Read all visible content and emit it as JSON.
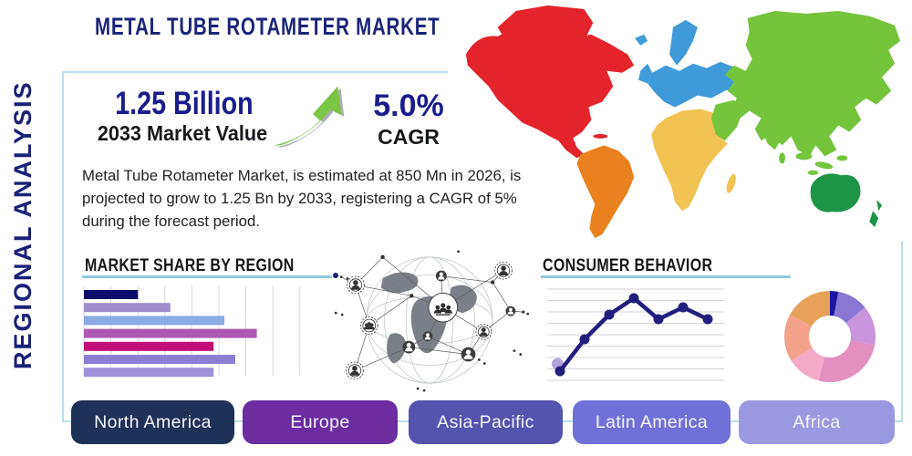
{
  "header": {
    "title": "METAL TUBE ROTAMETER MARKET"
  },
  "sidebar": {
    "label": "REGIONAL ANALYSIS"
  },
  "stats": {
    "market_value": "1.25 Billion",
    "market_value_caption": "2033 Market Value",
    "cagr_value": "5.0%",
    "cagr_caption": "CAGR",
    "growth_arrow_color": "#7cc444"
  },
  "description": "Metal Tube Rotameter Market, is estimated at 850 Mn in 2026, is projected to grow to 1.25 Bn by 2033, registering a CAGR of 5% during the forecast period.",
  "chart_data": [
    {
      "type": "bar",
      "title": "MARKET SHARE BY REGION",
      "orientation": "horizontal",
      "values": [
        20,
        32,
        52,
        64,
        48,
        56,
        48
      ],
      "colors": [
        "#0d0c6b",
        "#9e8ed0",
        "#8aabe4",
        "#ae58b5",
        "#c50f78",
        "#8c7ed6",
        "#9f90da"
      ],
      "xlim": [
        0,
        80
      ],
      "grid": true
    },
    {
      "type": "line",
      "title": "CONSUMER BEHAVIOR",
      "x": [
        1,
        2,
        3,
        4,
        5,
        6,
        7
      ],
      "values": [
        10,
        45,
        72,
        90,
        67,
        80,
        67
      ],
      "ylim": [
        0,
        100
      ],
      "line_color": "#221e7d",
      "first_point_halo_color": "#b2a3de",
      "grid": true
    },
    {
      "type": "donut",
      "values": [
        3,
        11,
        14,
        26,
        12,
        17,
        17
      ],
      "colors": [
        "#1b16a0",
        "#8a77d4",
        "#c995dc",
        "#e38fc0",
        "#f3abc8",
        "#f3a38b",
        "#e7a159"
      ]
    }
  ],
  "map": {
    "region_colors": {
      "north_america": "#e3242b",
      "greenland": "#e3242b",
      "south_america": "#e9821e",
      "europe": "#3f9ad9",
      "africa": "#f3c254",
      "asia": "#74c53c",
      "oceania": "#1d9547"
    }
  },
  "buttons": [
    {
      "label": "North America",
      "color": "#1e3156"
    },
    {
      "label": "Europe",
      "color": "#6b2da0"
    },
    {
      "label": "Asia-Pacific",
      "color": "#5553ae"
    },
    {
      "label": "Latin America",
      "color": "#7170d8"
    },
    {
      "label": "Africa",
      "color": "#9b98e2"
    }
  ],
  "theme": {
    "accent_navy": "#1a2178",
    "underline_blue": "#8fcadf",
    "box_border": "#badde9"
  }
}
